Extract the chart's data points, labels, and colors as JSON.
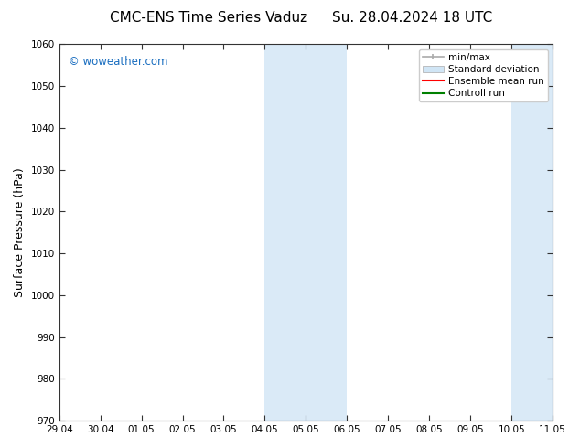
{
  "title_left": "CMC-ENS Time Series Vaduz",
  "title_right": "Su. 28.04.2024 18 UTC",
  "ylabel": "Surface Pressure (hPa)",
  "ylim": [
    970,
    1060
  ],
  "yticks": [
    970,
    980,
    990,
    1000,
    1010,
    1020,
    1030,
    1040,
    1050,
    1060
  ],
  "xtick_labels": [
    "29.04",
    "30.04",
    "01.05",
    "02.05",
    "03.05",
    "04.05",
    "05.05",
    "06.05",
    "07.05",
    "08.05",
    "09.05",
    "10.05",
    "11.05"
  ],
  "watermark": "© woweather.com",
  "watermark_color": "#1a6ec0",
  "background_color": "#ffffff",
  "plot_bg_color": "#ffffff",
  "shaded_regions": [
    {
      "xstart": 5,
      "xend": 7,
      "color": "#daeaf7"
    },
    {
      "xstart": 11,
      "xend": 13,
      "color": "#daeaf7"
    }
  ],
  "legend_items": [
    {
      "label": "min/max",
      "color": "#aaaaaa",
      "type": "errorbar"
    },
    {
      "label": "Standard deviation",
      "color": "#d0e5f5",
      "type": "fill"
    },
    {
      "label": "Ensemble mean run",
      "color": "#ff0000",
      "type": "line"
    },
    {
      "label": "Controll run",
      "color": "#008000",
      "type": "line"
    }
  ],
  "title_fontsize": 11,
  "tick_fontsize": 7.5,
  "ylabel_fontsize": 9,
  "legend_fontsize": 7.5
}
